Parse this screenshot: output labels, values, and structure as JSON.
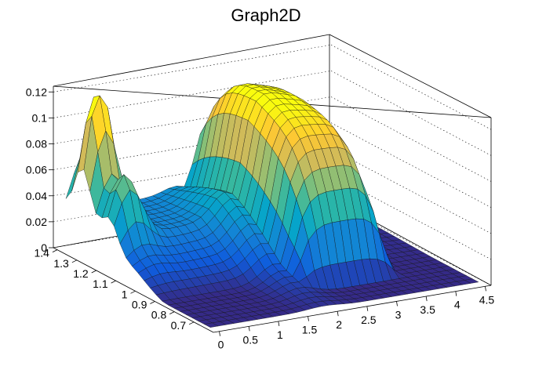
{
  "chart_data": {
    "type": "surface",
    "title": "Graph2D",
    "xlabel": "",
    "ylabel": "",
    "zlabel": "",
    "x_ticks": [
      "0",
      "0.5",
      "1",
      "1.5",
      "2",
      "2.5",
      "3",
      "3.5",
      "4",
      "4.5"
    ],
    "y_ticks": [
      "0.7",
      "0.8",
      "0.9",
      "1",
      "1.1",
      "1.2",
      "1.3",
      "1.4"
    ],
    "z_ticks": [
      "0",
      "0.02",
      "0.04",
      "0.06",
      "0.08",
      "0.1",
      "0.12"
    ],
    "xlim": [
      -0.1,
      4.6
    ],
    "ylim": [
      0.6,
      1.42
    ],
    "zlim": [
      0,
      0.125
    ],
    "colormap": [
      "#352a87",
      "#0f5cdd",
      "#1481d6",
      "#06a4ca",
      "#2eb7a4",
      "#87bf77",
      "#d1bb59",
      "#fec832",
      "#f9fb0e"
    ],
    "grid": true
  }
}
